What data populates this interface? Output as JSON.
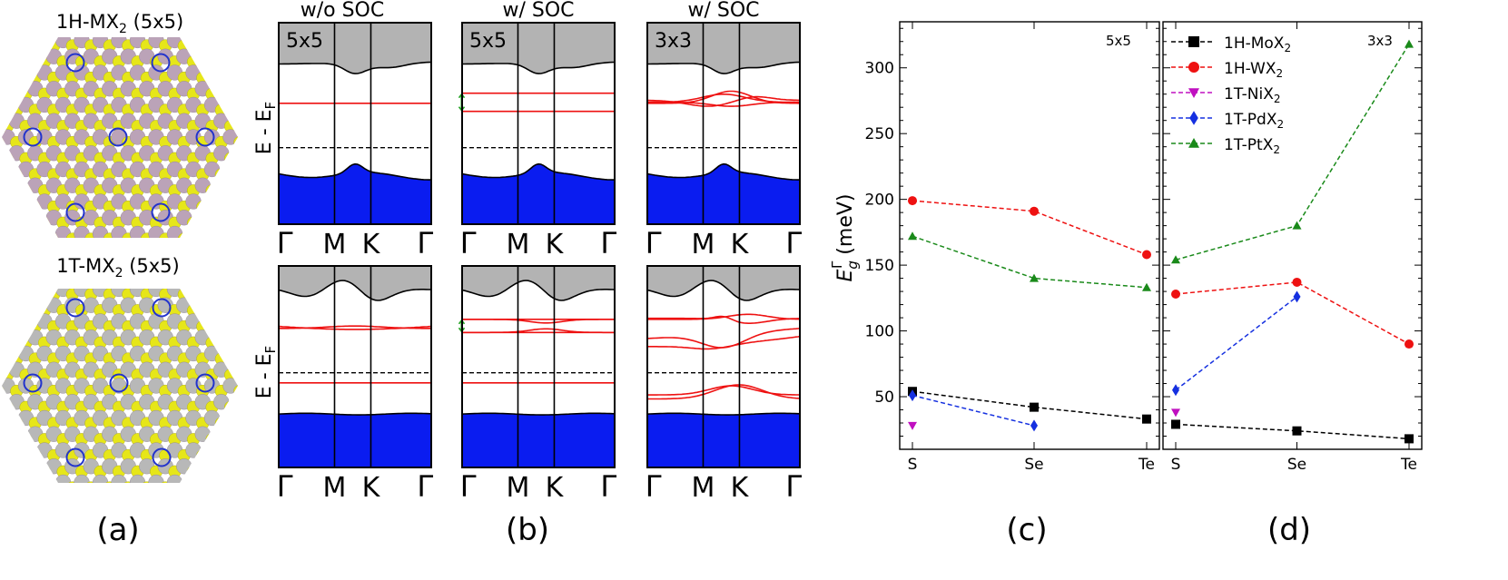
{
  "panel_a": {
    "top_title_prefix": "1H-MX",
    "top_title_sub": "2",
    "top_title_suffix": " (5x5)",
    "bottom_title_prefix": "1T-MX",
    "bottom_title_sub": "2",
    "bottom_title_suffix": " (5x5)",
    "label": "(a)",
    "colors": {
      "chalcogen": "#e6e619",
      "metal_h": "#bba3b8",
      "metal_t": "#b8b8b8",
      "defect_ring": "#2233cc"
    }
  },
  "panel_b": {
    "label": "(b)",
    "column_titles": [
      "w/o SOC",
      "w/ SOC",
      "w/ SOC"
    ],
    "supercell_tags": [
      "5x5",
      "5x5",
      "3x3"
    ],
    "ylabel_main": "E - E",
    "ylabel_sub": "F",
    "kpath": [
      "Γ",
      "M",
      "K",
      "Γ"
    ],
    "colors": {
      "conduction": "#b3b3b3",
      "valence": "#0a1cf0",
      "defect_band": "#ee1111",
      "fermi": "#000000",
      "soc_arrow": "#1fa21f"
    }
  },
  "chart_data": [
    {
      "type": "line",
      "panel_label": "(c)",
      "supercell_tag": "5x5",
      "ylabel_main": "E",
      "ylabel_sub": "g",
      "ylabel_sup": "Γ",
      "ylabel_unit": " (meV)",
      "categories": [
        "S",
        "Se",
        "Te"
      ],
      "ylim": [
        10,
        335
      ],
      "yticks": [
        50,
        100,
        150,
        200,
        250,
        300
      ],
      "series": [
        {
          "name": "1H-MoX2",
          "color": "#000000",
          "marker": "square",
          "values": [
            54,
            42,
            33
          ]
        },
        {
          "name": "1H-WX2",
          "color": "#ee1111",
          "marker": "circle",
          "values": [
            199,
            191,
            158
          ]
        },
        {
          "name": "1T-NiX2",
          "color": "#c010c0",
          "marker": "triangle-down",
          "values": [
            28,
            null,
            null
          ]
        },
        {
          "name": "1T-PdX2",
          "color": "#1530e0",
          "marker": "diamond",
          "values": [
            51,
            28,
            null
          ]
        },
        {
          "name": "1T-PtX2",
          "color": "#1a8a1a",
          "marker": "triangle-up",
          "values": [
            172,
            140,
            133
          ]
        }
      ]
    },
    {
      "type": "line",
      "panel_label": "(d)",
      "supercell_tag": "3x3",
      "categories": [
        "S",
        "Se",
        "Te"
      ],
      "ylim": [
        10,
        335
      ],
      "yticks": [
        50,
        100,
        150,
        200,
        250,
        300
      ],
      "legend_position": "top-left",
      "legend": [
        {
          "prefix": "1H-MoX",
          "sub": "2"
        },
        {
          "prefix": "1H-WX",
          "sub": "2"
        },
        {
          "prefix": "1T-NiX",
          "sub": "2"
        },
        {
          "prefix": "1T-PdX",
          "sub": "2"
        },
        {
          "prefix": "1T-PtX",
          "sub": "2"
        }
      ],
      "series": [
        {
          "name": "1H-MoX2",
          "color": "#000000",
          "marker": "square",
          "values": [
            29,
            24,
            18
          ]
        },
        {
          "name": "1H-WX2",
          "color": "#ee1111",
          "marker": "circle",
          "values": [
            128,
            137,
            90
          ]
        },
        {
          "name": "1T-NiX2",
          "color": "#c010c0",
          "marker": "triangle-down",
          "values": [
            38,
            null,
            null
          ]
        },
        {
          "name": "1T-PdX2",
          "color": "#1530e0",
          "marker": "diamond",
          "values": [
            55,
            126,
            null
          ]
        },
        {
          "name": "1T-PtX2",
          "color": "#1a8a1a",
          "marker": "triangle-up",
          "values": [
            154,
            180,
            318
          ]
        }
      ]
    }
  ]
}
